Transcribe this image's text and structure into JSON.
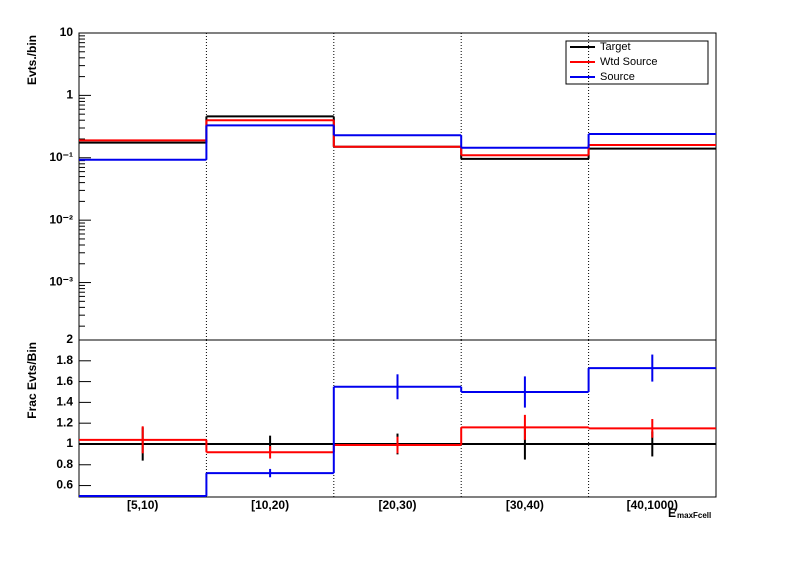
{
  "chart_data": [
    {
      "type": "step",
      "y_label": "Evts./bin",
      "log_y": true,
      "legend": "upper right",
      "ylim": [
        0.00012,
        10
      ],
      "yticks": [
        {
          "value": 0.001,
          "label": "10⁻³"
        },
        {
          "value": 0.01,
          "label": "10⁻²"
        },
        {
          "value": 0.1,
          "label": "10⁻¹"
        },
        1,
        10
      ],
      "series": [
        {
          "name": "Target",
          "color": "#000000",
          "values": [
            0.175,
            0.46,
            0.15,
            0.096,
            0.14
          ]
        },
        {
          "name": "Wtd Source",
          "color": "#ff0000",
          "values": [
            0.19,
            0.4,
            0.15,
            0.11,
            0.16
          ]
        },
        {
          "name": "Source",
          "color": "#0000ee",
          "values": [
            0.093,
            0.33,
            0.23,
            0.145,
            0.24
          ]
        }
      ]
    },
    {
      "type": "step",
      "y_label": "Frac Evts/Bin",
      "x_label": "E",
      "x_label_sub": "maxFcell",
      "categories": [
        "[5,10)",
        "[10,20)",
        "[20,30)",
        "[30,40)",
        "[40,1000)"
      ],
      "ylim": [
        0.49,
        2.0
      ],
      "yticks": [
        {
          "value": 0.6,
          "label": "0.6"
        },
        {
          "value": 0.8,
          "label": "0.8"
        },
        1,
        {
          "value": 1.2,
          "label": "1.2"
        },
        {
          "value": 1.4,
          "label": "1.4"
        },
        {
          "value": 1.6,
          "label": "1.6"
        },
        {
          "value": 1.8,
          "label": "1.8"
        },
        2
      ],
      "series": [
        {
          "name": "Target",
          "color": "#000000",
          "values": [
            1,
            1,
            1,
            1,
            1
          ],
          "errors": [
            0.16,
            0.08,
            0.1,
            0.15,
            0.12
          ]
        },
        {
          "name": "Wtd Source",
          "color": "#ff0000",
          "values": [
            1.04,
            0.92,
            0.99,
            1.16,
            1.15
          ],
          "errors": [
            0.13,
            0.06,
            0.08,
            0.12,
            0.09
          ]
        },
        {
          "name": "Source",
          "color": "#0000ee",
          "values": [
            0.5,
            0.72,
            1.55,
            1.5,
            1.73
          ],
          "errors": [
            0,
            0.04,
            0.12,
            0.15,
            0.13
          ]
        }
      ]
    }
  ]
}
